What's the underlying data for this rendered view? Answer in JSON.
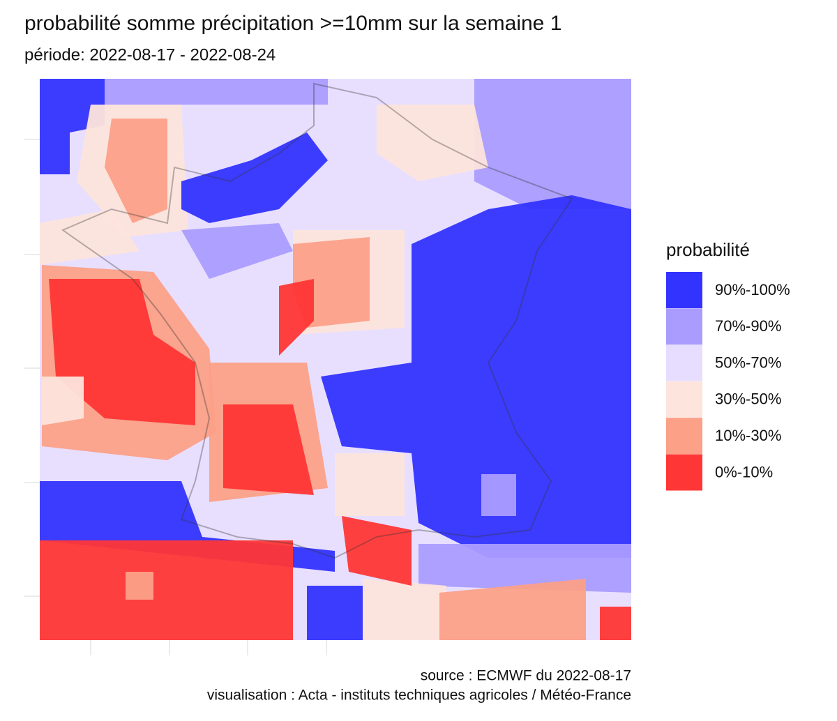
{
  "title": "probabilité somme précipitation >=10mm sur la semaine 1",
  "subtitle": "période: 2022-08-17 - 2022-08-24",
  "legend": {
    "title": "probabilité",
    "items": [
      {
        "label": "90%-100%",
        "color": "#3333ff"
      },
      {
        "label": "70%-90%",
        "color": "#aa9cff"
      },
      {
        "label": "50%-70%",
        "color": "#e7ddff"
      },
      {
        "label": "30%-50%",
        "color": "#fde4dc"
      },
      {
        "label": "10%-30%",
        "color": "#fca088"
      },
      {
        "label": "0%-10%",
        "color": "#ff3636"
      }
    ]
  },
  "caption": [
    "source : ECMWF du 2022-08-17",
    "visualisation : Acta - instituts techniques agricoles / Météo-France"
  ]
}
